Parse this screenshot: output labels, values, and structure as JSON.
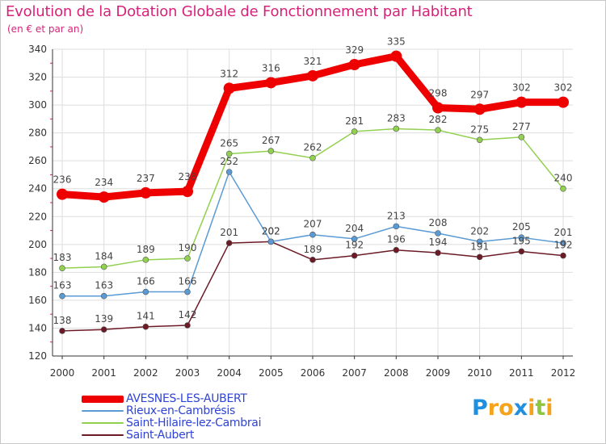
{
  "chart_data": {
    "type": "line",
    "title": "Evolution de la Dotation Globale de Fonctionnement par Habitant",
    "subtitle": "(en € et par an)",
    "x": [
      "2000",
      "2001",
      "2002",
      "2003",
      "2004",
      "2005",
      "2006",
      "2007",
      "2008",
      "2009",
      "2010",
      "2011",
      "2012"
    ],
    "ylim": [
      120,
      340
    ],
    "yticks": [
      120,
      140,
      160,
      180,
      200,
      220,
      240,
      260,
      280,
      300,
      320,
      340
    ],
    "grid": true,
    "legend_position": "bottom-left",
    "series": [
      {
        "name": "AVESNES-LES-AUBERT",
        "color": "#ee0000",
        "values": [
          236,
          234,
          237,
          238,
          312,
          316,
          321,
          329,
          335,
          298,
          297,
          302,
          302
        ]
      },
      {
        "name": "Rieux-en-Cambrésis",
        "color": "#5b9bd5",
        "values": [
          163,
          163,
          166,
          166,
          252,
          202,
          207,
          204,
          213,
          208,
          202,
          205,
          201
        ]
      },
      {
        "name": "Saint-Hilaire-lez-Cambrai",
        "color": "#92d050",
        "values": [
          183,
          184,
          189,
          190,
          265,
          267,
          262,
          281,
          283,
          282,
          275,
          277,
          240
        ]
      },
      {
        "name": "Saint-Aubert",
        "color": "#6b1a26",
        "values": [
          138,
          139,
          141,
          142,
          201,
          202,
          189,
          192,
          196,
          194,
          191,
          195,
          192
        ]
      }
    ]
  },
  "logo": {
    "text": "Proxiti",
    "letters": [
      "P",
      "r",
      "o",
      "x",
      "i",
      "t",
      "i"
    ],
    "letter_colors": [
      "#1f8fe0",
      "#f5a31a",
      "#f5a31a",
      "#1f8fe0",
      "#f5a31a",
      "#8dc63f",
      "#f5a31a"
    ]
  }
}
